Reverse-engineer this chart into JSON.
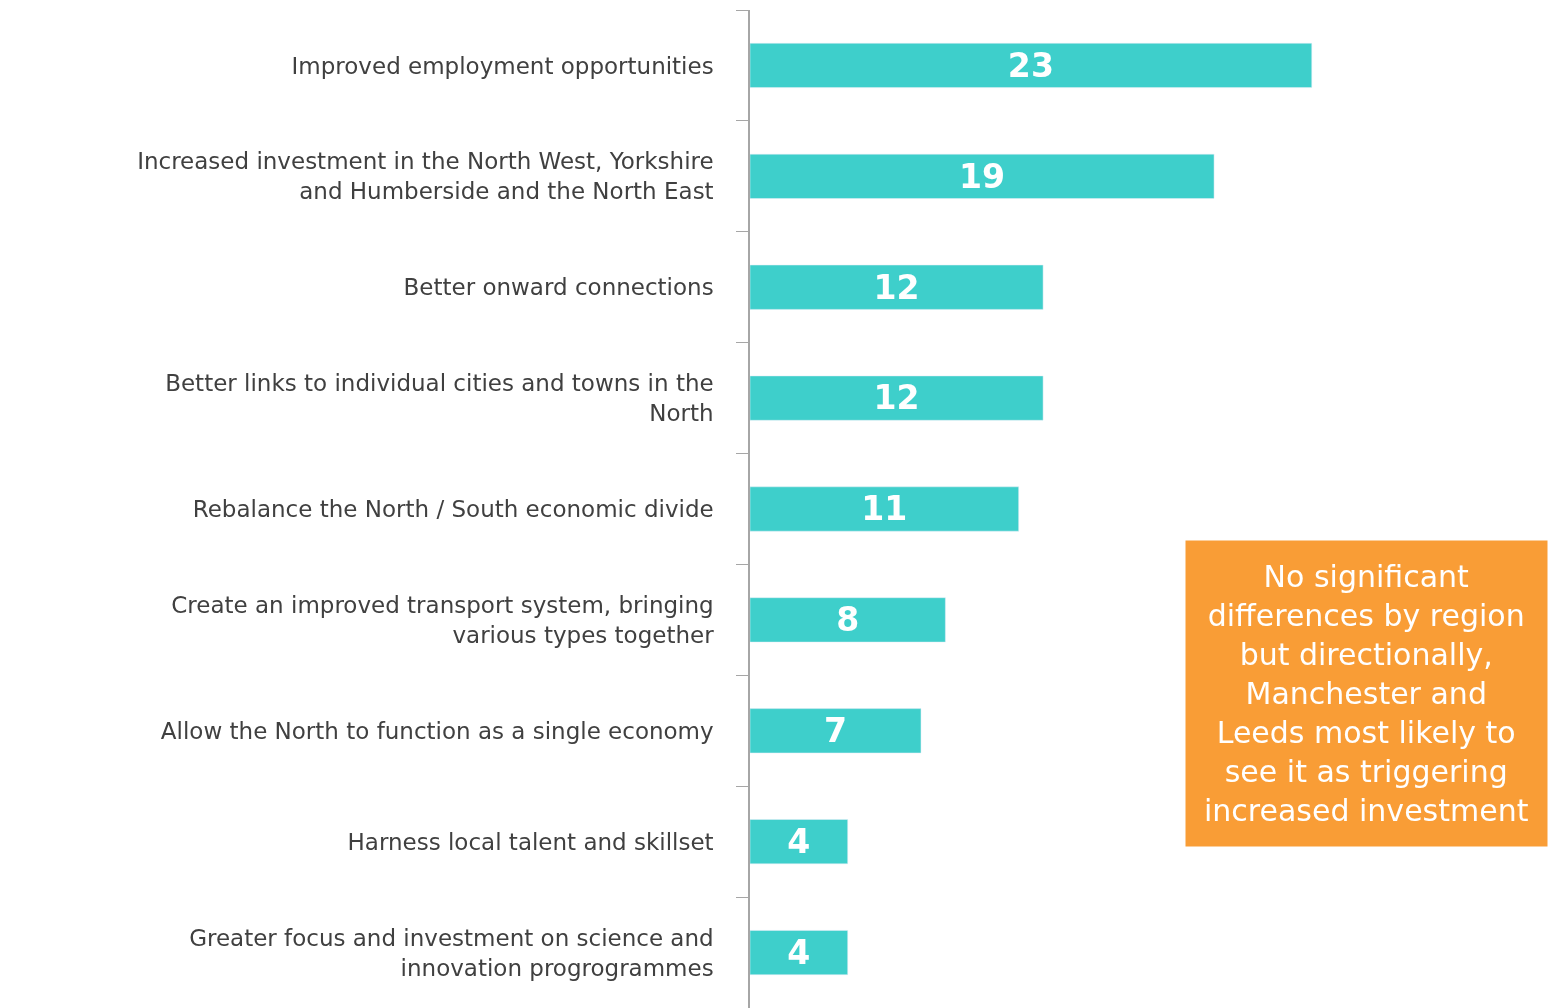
{
  "chart_data": {
    "type": "bar",
    "orientation": "horizontal",
    "categories": [
      "Improved employment opportunities",
      "Increased investment in the North West, Yorkshire\nand Humberside and the North East",
      "Better onward connections",
      "Better links to individual cities and towns in the\nNorth",
      "Rebalance the North / South economic divide",
      "Create an improved transport system, bringing\nvarious types together",
      "Allow the North to function as a single economy",
      "Harness local talent and skillset",
      "Greater focus and investment on science and\ninnovation progrogrammes"
    ],
    "values": [
      23,
      19,
      12,
      12,
      11,
      8,
      7,
      4,
      4
    ],
    "color": "#3ecfcb",
    "data_labels": true,
    "xlim": [
      0,
      33
    ],
    "tick_labels": "y",
    "legend": false,
    "annotations": [
      "No significant\ndifferences by region\nbut directionally,\nManchester and\nLeeds most likely to\nsee it as triggering\nincreased investment"
    ]
  }
}
